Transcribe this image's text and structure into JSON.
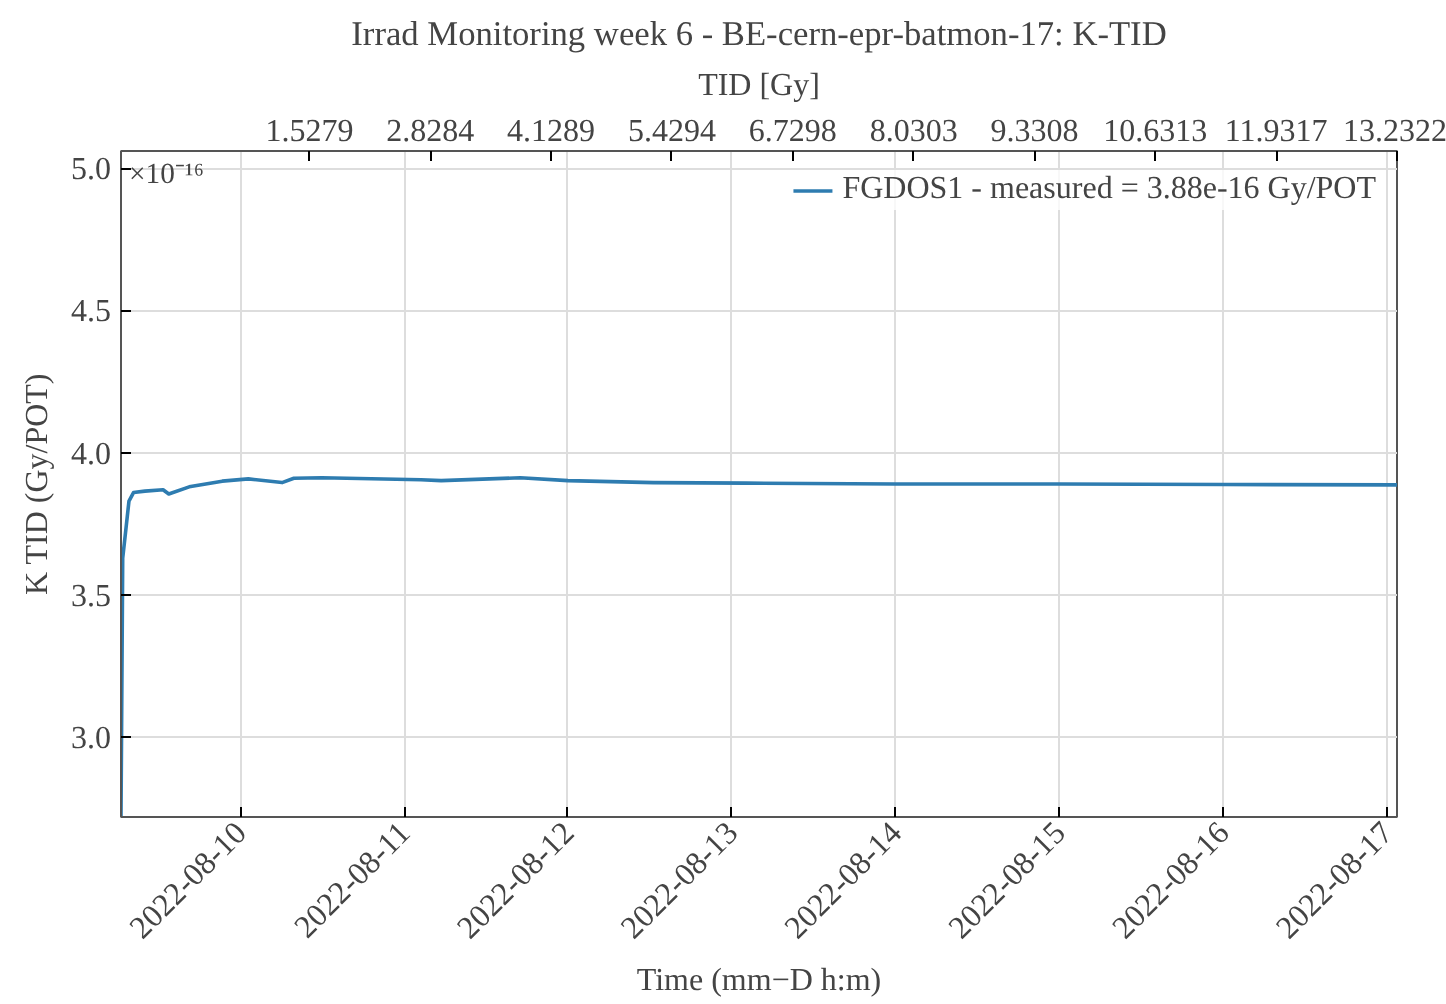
{
  "chart_data": {
    "type": "line",
    "title": "Irrad Monitoring week 6 - BE-cern-epr-batmon-17: K-TID",
    "xlabel": "Time (mm−D h:m)",
    "ylabel": "K TID (Gy/POT)",
    "x2label": "TID [Gy]",
    "annotations": [
      "×10⁻¹⁶"
    ],
    "x": [
      "2022-08-09T06:30",
      "2022-08-09T06:45",
      "2022-08-09T07:10",
      "2022-08-09T07:40",
      "2022-08-09T08:20",
      "2022-08-09T10:00",
      "2022-08-09T12:40",
      "2022-08-09T13:30",
      "2022-08-09T16:30",
      "2022-08-09T21:20",
      "2022-08-10T01:10",
      "2022-08-10T06:06",
      "2022-08-10T07:50",
      "2022-08-10T11:55",
      "2022-08-11T02:28",
      "2022-08-11T05:25",
      "2022-08-11T17:00",
      "2022-08-12T00:00",
      "2022-08-12T12:30",
      "2022-08-13T02:10",
      "2022-08-14T00:00",
      "2022-08-15T00:00",
      "2022-08-16T00:00",
      "2022-08-17T01:30"
    ],
    "series": [
      {
        "name": "FGDOS1 - measured = 3.88e-16 Gy/POT",
        "color": "#2e7cb0",
        "values": [
          2.72,
          3.63,
          3.72,
          3.83,
          3.86,
          3.865,
          3.87,
          3.855,
          3.88,
          3.9,
          3.908,
          3.895,
          3.91,
          3.912,
          3.905,
          3.902,
          3.912,
          3.902,
          3.895,
          3.893,
          3.89,
          3.89,
          3.888,
          3.887
        ]
      }
    ],
    "xlim": [
      "2022-08-09T06:30",
      "2022-08-17T01:30"
    ],
    "xticks": [
      "2022-08-10",
      "2022-08-11",
      "2022-08-12",
      "2022-08-13",
      "2022-08-14",
      "2022-08-15",
      "2022-08-16",
      "2022-08-17"
    ],
    "ylim": [
      2.72,
      5.06
    ],
    "yticks": [
      {
        "value": 3.0,
        "label": "3.0"
      },
      {
        "value": 3.5,
        "label": "3.5"
      },
      {
        "value": 4.0,
        "label": "4.0"
      },
      {
        "value": 4.5,
        "label": "4.5"
      },
      {
        "value": 5.0,
        "label": "5.0"
      }
    ],
    "x2lim": [
      -0.5,
      13.2322
    ],
    "x2ticks": [
      1.5279,
      2.8284,
      4.1289,
      5.4294,
      6.7298,
      8.0303,
      9.3308,
      10.6313,
      11.9317,
      13.2322
    ],
    "grid": true,
    "legend": "top right",
    "line_style": "solid",
    "marker": "none"
  }
}
